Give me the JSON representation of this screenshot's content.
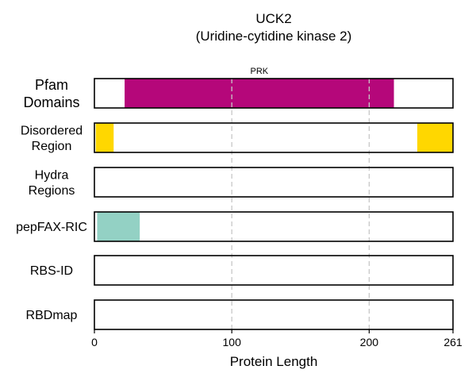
{
  "chart_data": {
    "type": "bar",
    "title": "UCK2",
    "subtitle": "(Uridine-cytidine kinase 2)",
    "xlabel": "Protein Length",
    "xlim": [
      0,
      261
    ],
    "xticks": [
      0,
      100,
      200,
      261
    ],
    "grid": "vertical dashed at 100 and 200",
    "tracks": [
      {
        "label_lines": [
          "Pfam",
          "Domains"
        ],
        "segments": [
          {
            "start": 22,
            "end": 218,
            "color": "#b5077a",
            "label": "PRK"
          }
        ]
      },
      {
        "label_lines": [
          "Disordered",
          "Region"
        ],
        "segments": [
          {
            "start": 1,
            "end": 14,
            "color": "#ffd700",
            "label": ""
          },
          {
            "start": 235,
            "end": 261,
            "color": "#ffd700",
            "label": ""
          }
        ]
      },
      {
        "label_lines": [
          "Hydra",
          "Regions"
        ],
        "segments": []
      },
      {
        "label_lines": [
          "pepFAX-RIC"
        ],
        "segments": [
          {
            "start": 2,
            "end": 33,
            "color": "#93d1c4",
            "label": ""
          }
        ]
      },
      {
        "label_lines": [
          "RBS-ID"
        ],
        "segments": []
      },
      {
        "label_lines": [
          "RBDmap"
        ],
        "segments": []
      }
    ]
  }
}
